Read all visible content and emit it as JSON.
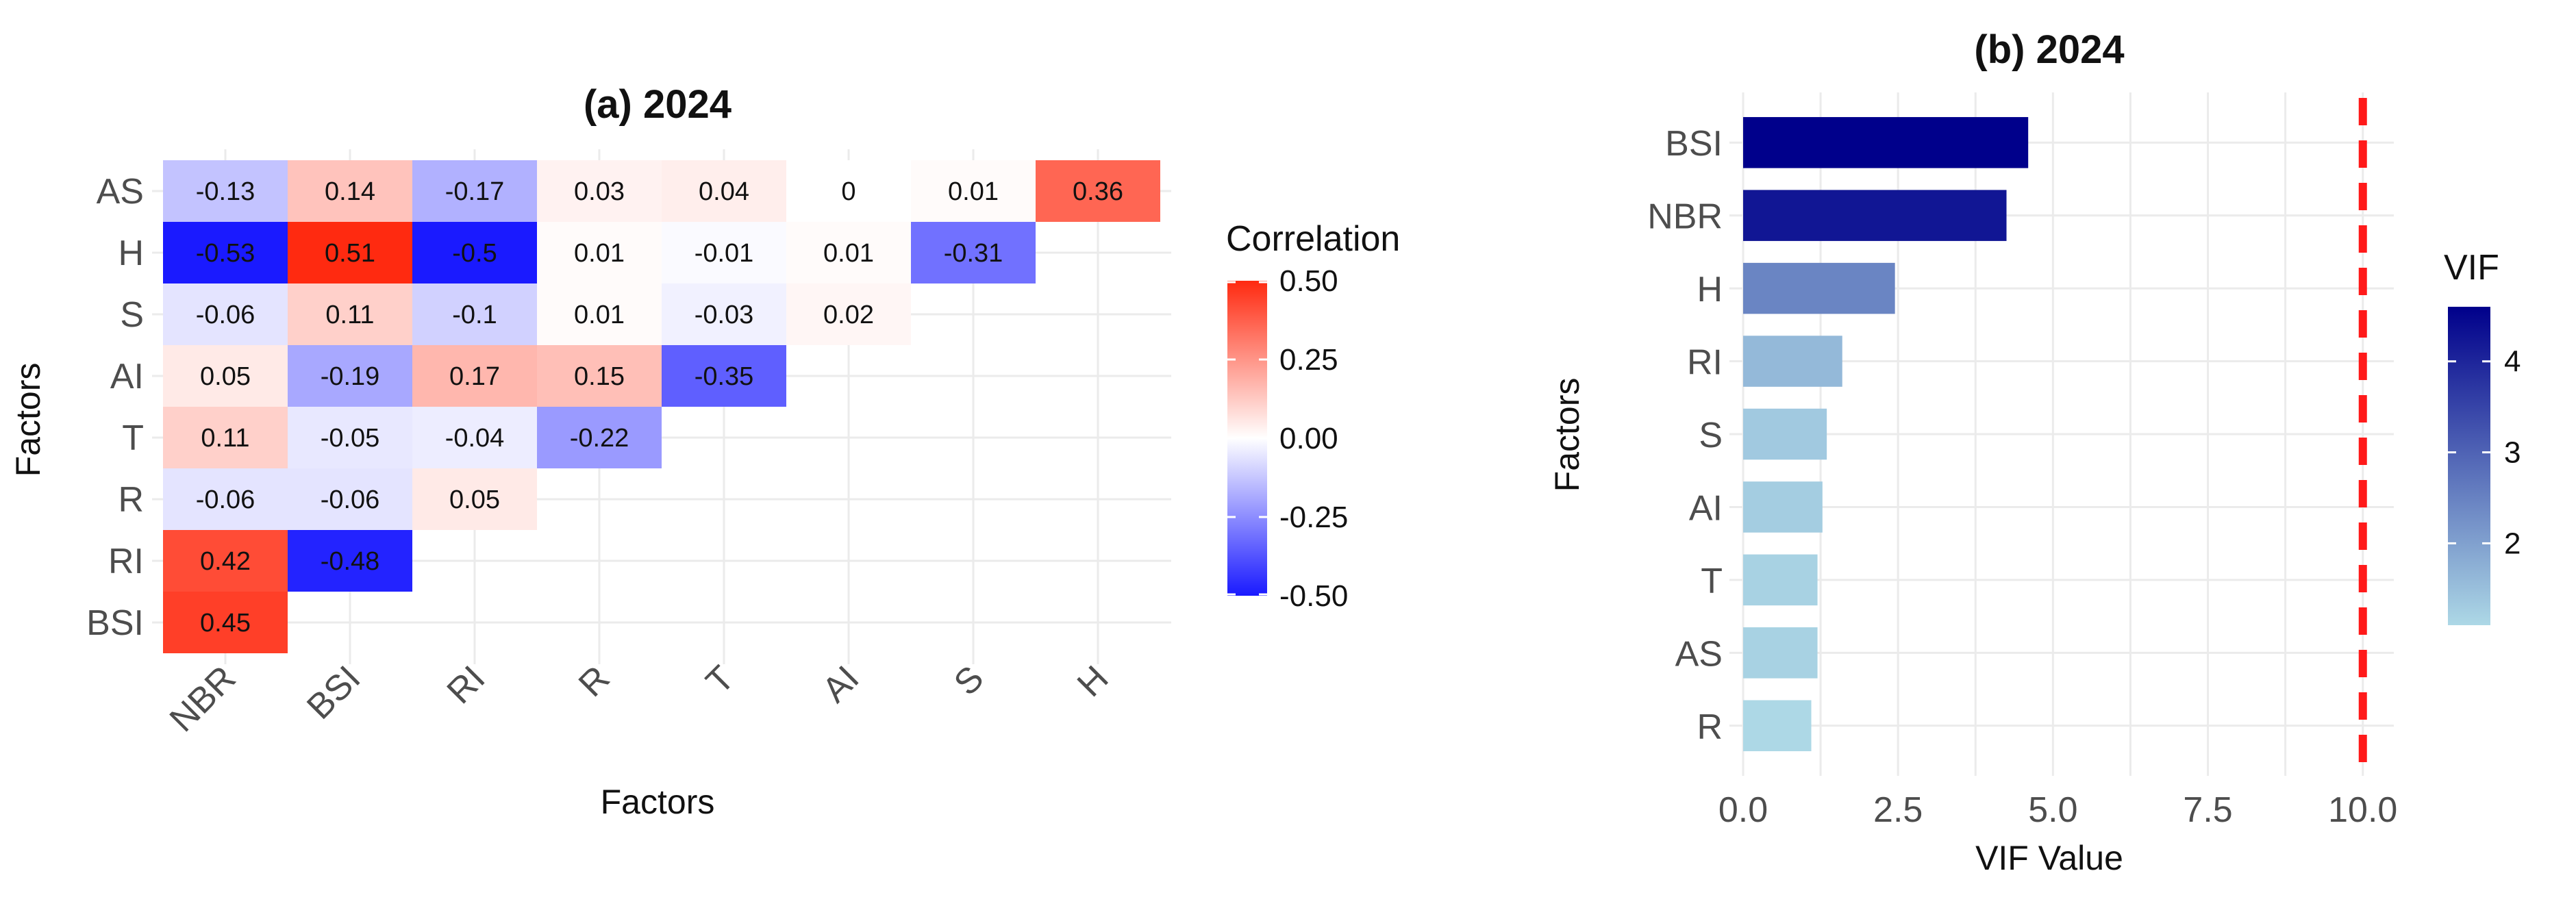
{
  "chart_data": [
    {
      "type": "heatmap",
      "title": "(a) 2024",
      "xlabel": "Factors",
      "ylabel": "Factors",
      "x_categories": [
        "NBR",
        "BSI",
        "RI",
        "R",
        "T",
        "AI",
        "S",
        "H"
      ],
      "y_categories": [
        "AS",
        "H",
        "S",
        "AI",
        "T",
        "R",
        "RI",
        "BSI"
      ],
      "cells": [
        {
          "y": "AS",
          "x": "NBR",
          "value": -0.13,
          "label": "-0.13"
        },
        {
          "y": "AS",
          "x": "BSI",
          "value": 0.14,
          "label": "0.14"
        },
        {
          "y": "AS",
          "x": "RI",
          "value": -0.17,
          "label": "-0.17"
        },
        {
          "y": "AS",
          "x": "R",
          "value": 0.03,
          "label": "0.03"
        },
        {
          "y": "AS",
          "x": "T",
          "value": 0.04,
          "label": "0.04"
        },
        {
          "y": "AS",
          "x": "AI",
          "value": 0,
          "label": "0"
        },
        {
          "y": "AS",
          "x": "S",
          "value": 0.01,
          "label": "0.01"
        },
        {
          "y": "AS",
          "x": "H",
          "value": 0.36,
          "label": "0.36"
        },
        {
          "y": "H",
          "x": "NBR",
          "value": -0.53,
          "label": "-0.53"
        },
        {
          "y": "H",
          "x": "BSI",
          "value": 0.51,
          "label": "0.51"
        },
        {
          "y": "H",
          "x": "RI",
          "value": -0.5,
          "label": "-0.5"
        },
        {
          "y": "H",
          "x": "R",
          "value": 0.01,
          "label": "0.01"
        },
        {
          "y": "H",
          "x": "T",
          "value": -0.01,
          "label": "-0.01"
        },
        {
          "y": "H",
          "x": "AI",
          "value": 0.01,
          "label": "0.01"
        },
        {
          "y": "H",
          "x": "S",
          "value": -0.31,
          "label": "-0.31"
        },
        {
          "y": "S",
          "x": "NBR",
          "value": -0.06,
          "label": "-0.06"
        },
        {
          "y": "S",
          "x": "BSI",
          "value": 0.11,
          "label": "0.11"
        },
        {
          "y": "S",
          "x": "RI",
          "value": -0.1,
          "label": "-0.1"
        },
        {
          "y": "S",
          "x": "R",
          "value": 0.01,
          "label": "0.01"
        },
        {
          "y": "S",
          "x": "T",
          "value": -0.03,
          "label": "-0.03"
        },
        {
          "y": "S",
          "x": "AI",
          "value": 0.02,
          "label": "0.02"
        },
        {
          "y": "AI",
          "x": "NBR",
          "value": 0.05,
          "label": "0.05"
        },
        {
          "y": "AI",
          "x": "BSI",
          "value": -0.19,
          "label": "-0.19"
        },
        {
          "y": "AI",
          "x": "RI",
          "value": 0.17,
          "label": "0.17"
        },
        {
          "y": "AI",
          "x": "R",
          "value": 0.15,
          "label": "0.15"
        },
        {
          "y": "AI",
          "x": "T",
          "value": -0.35,
          "label": "-0.35"
        },
        {
          "y": "T",
          "x": "NBR",
          "value": 0.11,
          "label": "0.11"
        },
        {
          "y": "T",
          "x": "BSI",
          "value": -0.05,
          "label": "-0.05"
        },
        {
          "y": "T",
          "x": "RI",
          "value": -0.04,
          "label": "-0.04"
        },
        {
          "y": "T",
          "x": "R",
          "value": -0.22,
          "label": "-0.22"
        },
        {
          "y": "R",
          "x": "NBR",
          "value": -0.06,
          "label": "-0.06"
        },
        {
          "y": "R",
          "x": "BSI",
          "value": -0.06,
          "label": "-0.06"
        },
        {
          "y": "R",
          "x": "RI",
          "value": 0.05,
          "label": "0.05"
        },
        {
          "y": "RI",
          "x": "NBR",
          "value": 0.42,
          "label": "0.42"
        },
        {
          "y": "RI",
          "x": "BSI",
          "value": -0.48,
          "label": "-0.48"
        },
        {
          "y": "BSI",
          "x": "NBR",
          "value": 0.45,
          "label": "0.45"
        }
      ],
      "legend": {
        "title": "Correlation",
        "ticks": [
          "0.50",
          "0.25",
          "0.00",
          "-0.25",
          "-0.50"
        ],
        "range": [
          -0.5,
          0.5
        ],
        "low_color": "#1a1aff",
        "mid_color": "#ffffff",
        "high_color": "#ff2a10"
      },
      "grid": true
    },
    {
      "type": "bar",
      "orientation": "horizontal",
      "title": "(b) 2024",
      "xlabel": "VIF Value",
      "ylabel": "Factors",
      "categories": [
        "BSI",
        "NBR",
        "H",
        "RI",
        "S",
        "AI",
        "T",
        "AS",
        "R"
      ],
      "values": [
        4.6,
        4.25,
        2.45,
        1.6,
        1.35,
        1.28,
        1.2,
        1.2,
        1.1
      ],
      "xlim": [
        0,
        10.5
      ],
      "x_ticks": [
        "0.0",
        "2.5",
        "5.0",
        "7.5",
        "10.0"
      ],
      "reference_line": {
        "x": 10,
        "style": "dashed",
        "color": "#ff1a1a"
      },
      "legend": {
        "title": "VIF",
        "ticks": [
          "4",
          "3",
          "2"
        ],
        "range": [
          1.1,
          4.6
        ],
        "low_color": "#add8e6",
        "high_color": "#00008b"
      },
      "grid": true
    }
  ]
}
